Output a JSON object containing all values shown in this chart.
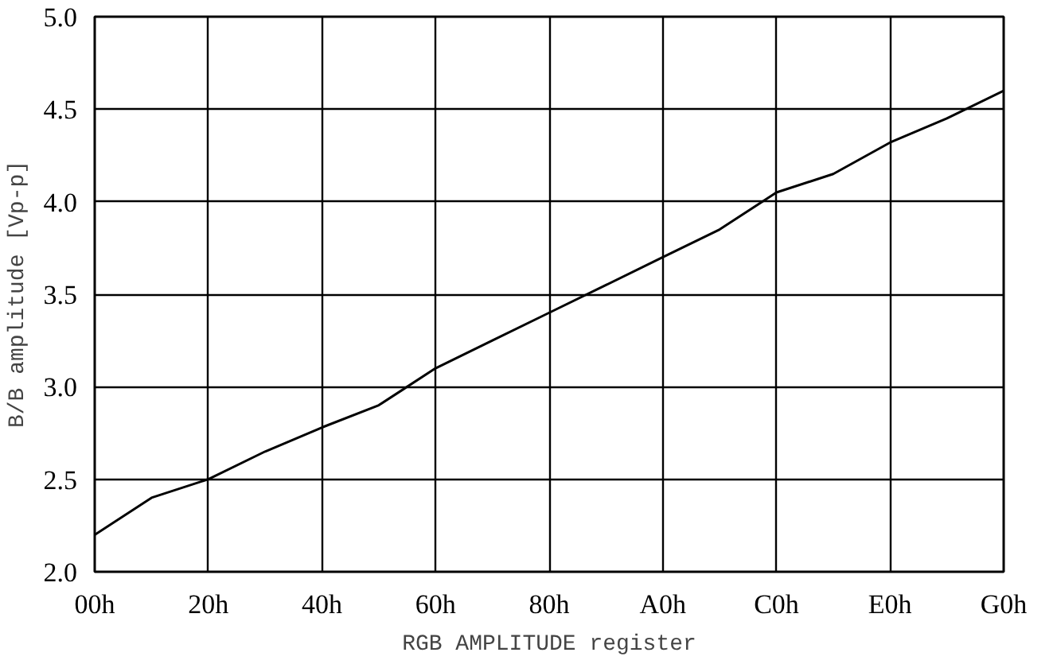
{
  "chart_data": {
    "type": "line",
    "xlabel": "RGB AMPLITUDE register",
    "ylabel": "B/B amplitude [Vp-p]",
    "categories": [
      "00h",
      null,
      "20h",
      null,
      "40h",
      null,
      "60h",
      null,
      "80h",
      null,
      "A0h",
      null,
      "C0h",
      null,
      "E0h",
      null,
      "G0h"
    ],
    "series": [
      {
        "color": "#000000",
        "values": [
          2.2,
          2.4,
          2.5,
          2.65,
          2.78,
          2.9,
          3.1,
          3.25,
          3.4,
          3.55,
          3.7,
          3.85,
          4.05,
          4.15,
          4.32,
          4.45,
          4.6
        ]
      }
    ],
    "ylim": [
      2,
      5
    ],
    "yticks": [
      {
        "value": 2,
        "label": "2.0"
      },
      {
        "value": 2.5,
        "label": "2.5"
      },
      {
        "value": 3,
        "label": "3.0"
      },
      {
        "value": 3.5,
        "label": "3.5"
      },
      {
        "value": 4,
        "label": "4.0"
      },
      {
        "value": 4.5,
        "label": "4.5"
      },
      {
        "value": 5,
        "label": "5.0"
      }
    ],
    "grid": true,
    "marker": "none",
    "line_style": "solid"
  }
}
